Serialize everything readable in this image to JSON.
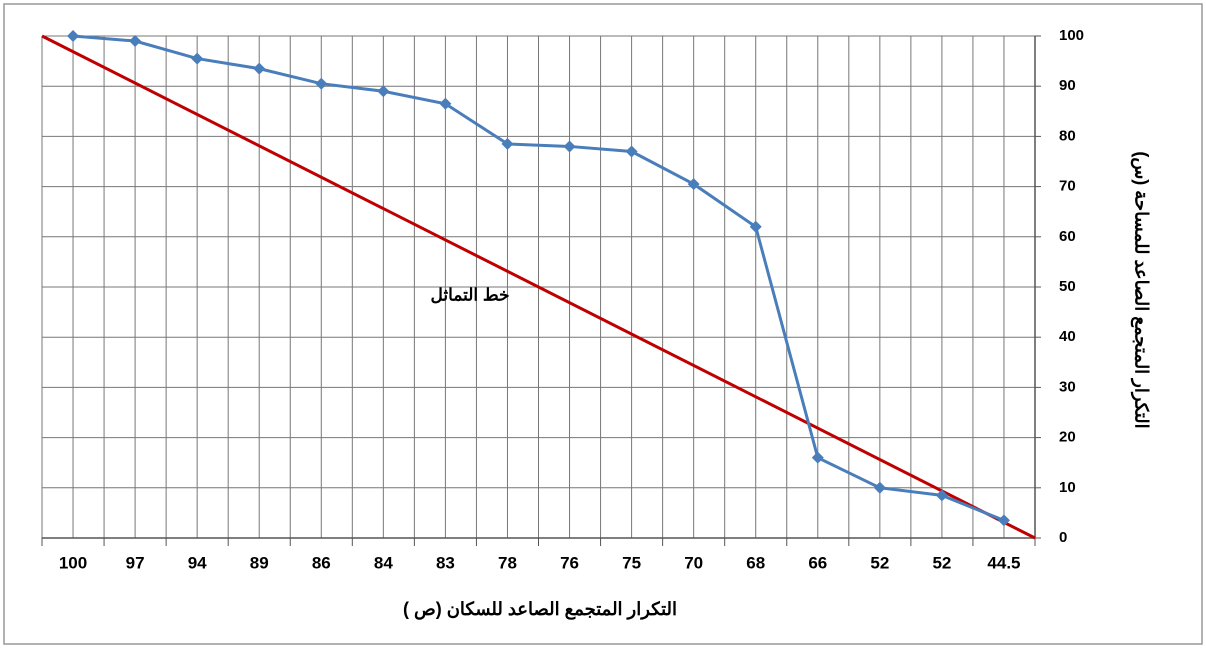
{
  "chart_data": {
    "type": "line",
    "categories": [
      "100",
      "97",
      "94",
      "89",
      "86",
      "84",
      "83",
      "78",
      "76",
      "75",
      "70",
      "68",
      "66",
      "52",
      "52",
      "44.5"
    ],
    "series": [
      {
        "color": "#4a7ebb",
        "values": [
          100,
          99,
          95.5,
          93.5,
          90.5,
          89,
          86.5,
          78.5,
          78,
          77,
          70.5,
          62,
          16,
          10,
          8.5,
          3.5
        ]
      }
    ],
    "reference_line": {
      "label": "خط التماثل",
      "from": 100,
      "to": 0,
      "color": "#c00000"
    },
    "xlabel": "التكرار المتجمع الصاعد للسكان (ص )",
    "ylabel": "التكرار المتجمع الصاعد للمساحة (س)",
    "ylim": [
      0,
      100
    ],
    "yticks": [
      0,
      10,
      20,
      30,
      40,
      50,
      60,
      70,
      80,
      90,
      100
    ],
    "grid": true
  }
}
